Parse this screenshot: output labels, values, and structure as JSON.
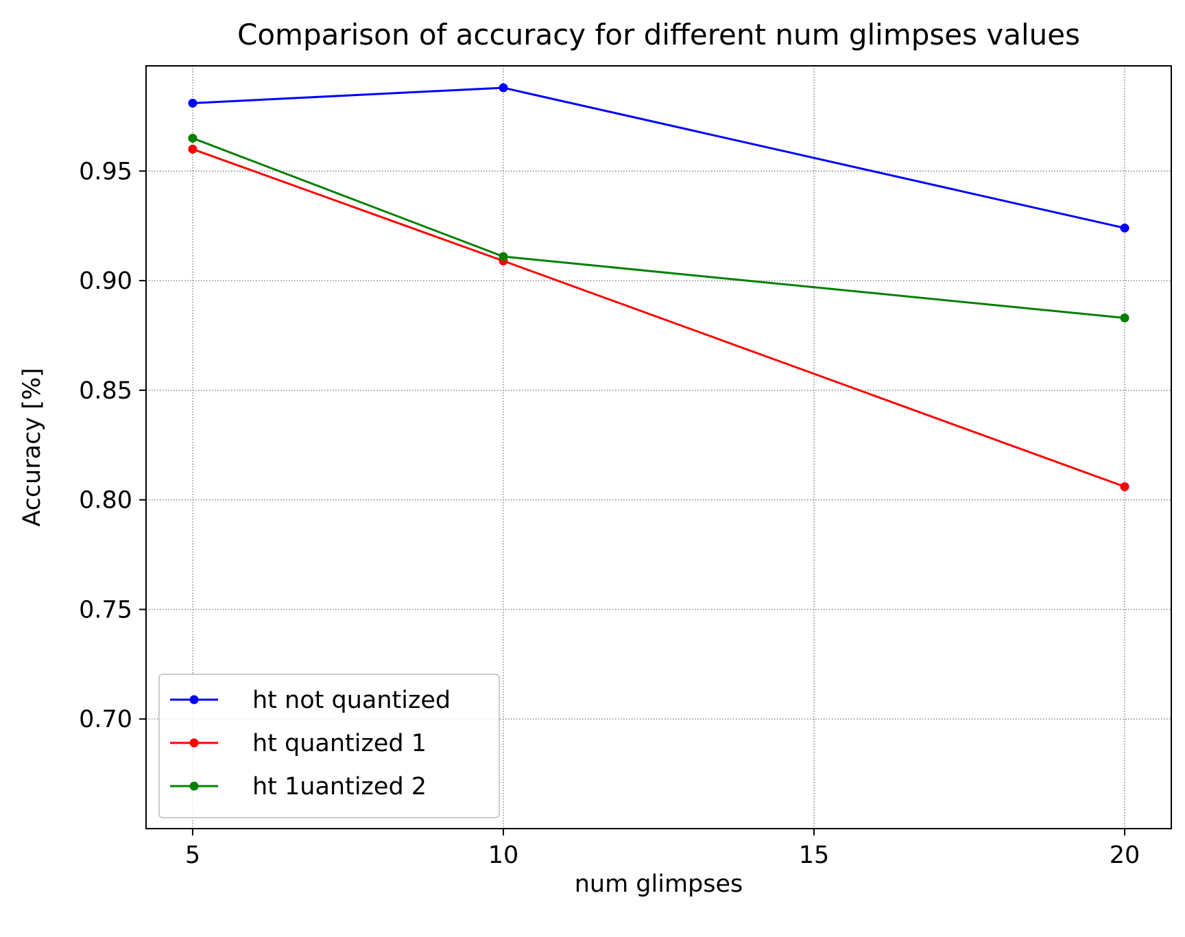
{
  "chart_data": {
    "type": "line",
    "title": "Comparison of accuracy for different num glimpses values",
    "xlabel": "num glimpses",
    "ylabel": "Accuracy [%]",
    "x": [
      5,
      10,
      20
    ],
    "xlim": [
      4.25,
      20.75
    ],
    "ylim": [
      0.65,
      0.998
    ],
    "xticks": [
      5,
      10,
      15,
      20
    ],
    "xtick_labels": [
      "5",
      "10",
      "15",
      "20"
    ],
    "yticks": [
      0.7,
      0.75,
      0.8,
      0.85,
      0.9,
      0.95
    ],
    "ytick_labels": [
      "0.70",
      "0.75",
      "0.80",
      "0.85",
      "0.90",
      "0.95"
    ],
    "grid": true,
    "legend_position": "lower-left",
    "series": [
      {
        "name": "ht not quantized",
        "color": "#0000ff",
        "values": [
          0.981,
          0.988,
          0.924
        ]
      },
      {
        "name": "ht quantized 1",
        "color": "#ff0000",
        "values": [
          0.96,
          0.909,
          0.806
        ]
      },
      {
        "name": "ht 1uantized 2",
        "color": "#008000",
        "values": [
          0.965,
          0.911,
          0.883
        ]
      }
    ]
  }
}
